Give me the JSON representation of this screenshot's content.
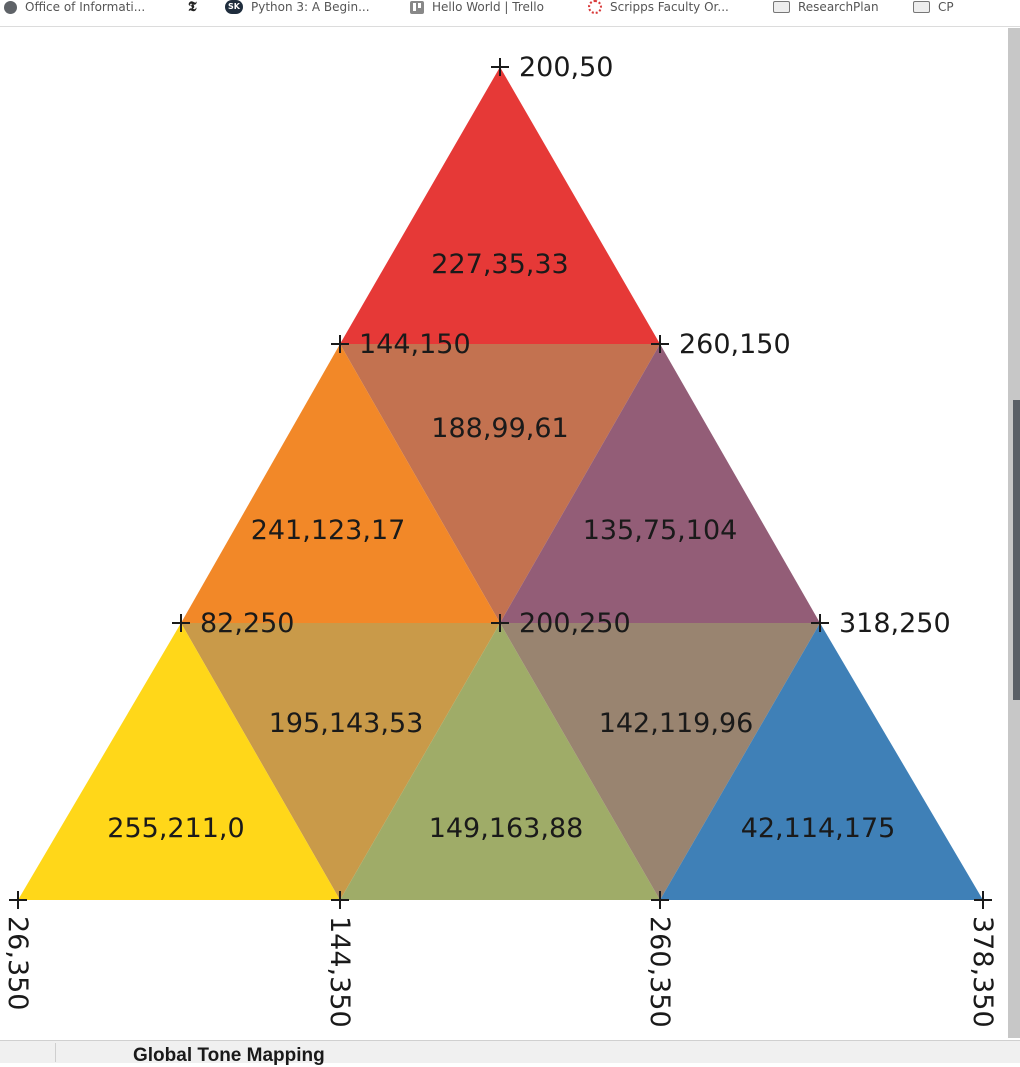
{
  "bookmarks": [
    {
      "label": "Office of Informati...",
      "icon": "globe-icon"
    },
    {
      "label": "",
      "icon": "nyt-icon"
    },
    {
      "label": "Python 3: A Begin...",
      "icon": "sk-icon"
    },
    {
      "label": "Hello World | Trello",
      "icon": "trello-icon"
    },
    {
      "label": "Scripps Faculty Or...",
      "icon": "scripps-icon"
    },
    {
      "label": "ResearchPlan",
      "icon": "folder-icon"
    },
    {
      "label": "CP",
      "icon": "folder-icon"
    }
  ],
  "triangles": [
    {
      "label": "227,35,33",
      "color": "#e32321"
    },
    {
      "label": "188,99,61",
      "color": "#bc633d"
    },
    {
      "label": "241,123,17",
      "color": "#f17b11"
    },
    {
      "label": "135,75,104",
      "color": "#874b68"
    },
    {
      "label": "195,143,53",
      "color": "#c38f35"
    },
    {
      "label": "255,211,0",
      "color": "#ffd300"
    },
    {
      "label": "149,163,88",
      "color": "#95a358"
    },
    {
      "label": "142,119,96",
      "color": "#8e7760"
    },
    {
      "label": "42,114,175",
      "color": "#2a72af"
    }
  ],
  "points": [
    "200,50",
    "144,150",
    "260,150",
    "82,250",
    "200,250",
    "318,250",
    "26,350",
    "144,350",
    "260,350",
    "378,350"
  ],
  "footer": {
    "text": "Global Tone Mapping"
  }
}
